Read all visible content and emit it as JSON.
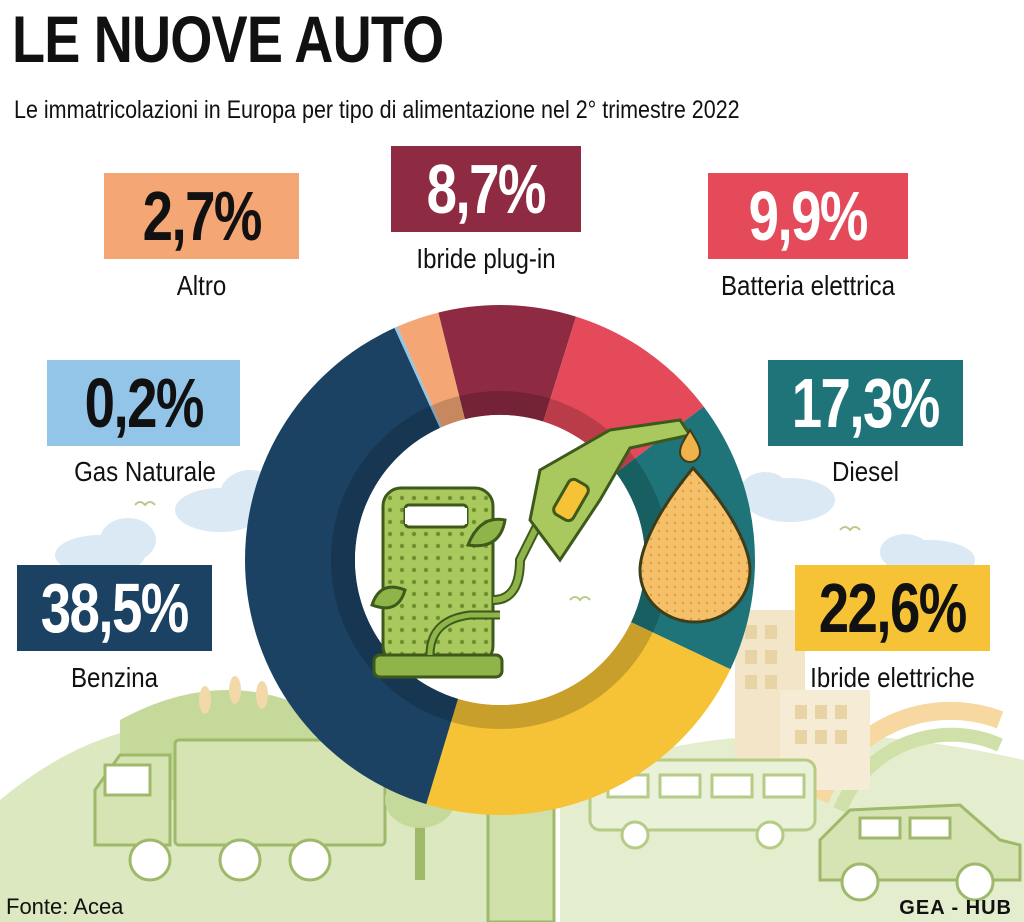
{
  "title": "LE NUOVE AUTO",
  "subtitle": "Le immatricolazioni in Europa per tipo di alimentazione nel 2° trimestre 2022",
  "source": "Fonte: Acea",
  "credit": "GEA - HUB",
  "chart_data": {
    "type": "pie",
    "variant": "donut",
    "title": "LE NUOVE AUTO",
    "subtitle": "Le immatricolazioni in Europa per tipo di alimentazione nel 2° trimestre 2022",
    "slices": [
      {
        "name": "Ibride plug-in",
        "value": 8.7,
        "label": "8,7%",
        "color": "#8e2b43"
      },
      {
        "name": "Batteria elettrica",
        "value": 9.9,
        "label": "9,9%",
        "color": "#e44a5a"
      },
      {
        "name": "Diesel",
        "value": 17.3,
        "label": "17,3%",
        "color": "#1e7478"
      },
      {
        "name": "Ibride elettriche",
        "value": 22.6,
        "label": "22,6%",
        "color": "#f6c236"
      },
      {
        "name": "Benzina",
        "value": 38.5,
        "label": "38,5%",
        "color": "#1b4263"
      },
      {
        "name": "Gas Naturale",
        "value": 0.2,
        "label": "0,2%",
        "color": "#93c5e8"
      },
      {
        "name": "Altro",
        "value": 2.7,
        "label": "2,7%",
        "color": "#f4a674"
      }
    ]
  },
  "callouts": {
    "altro": {
      "value": "2,7%",
      "label": "Altro"
    },
    "plugin": {
      "value": "8,7%",
      "label": "Ibride plug-in"
    },
    "batteria": {
      "value": "9,9%",
      "label": "Batteria elettrica"
    },
    "gas": {
      "value": "0,2%",
      "label": "Gas Naturale"
    },
    "diesel": {
      "value": "17,3%",
      "label": "Diesel"
    },
    "benzina": {
      "value": "38,5%",
      "label": "Benzina"
    },
    "ibride": {
      "value": "22,6%",
      "label": "Ibride elettriche"
    }
  },
  "colors": {
    "background_green": "#cfe0a8",
    "pump_green": "#8fb44a",
    "oil_drop": "#f0b24a",
    "building": "#f3e6c8"
  }
}
